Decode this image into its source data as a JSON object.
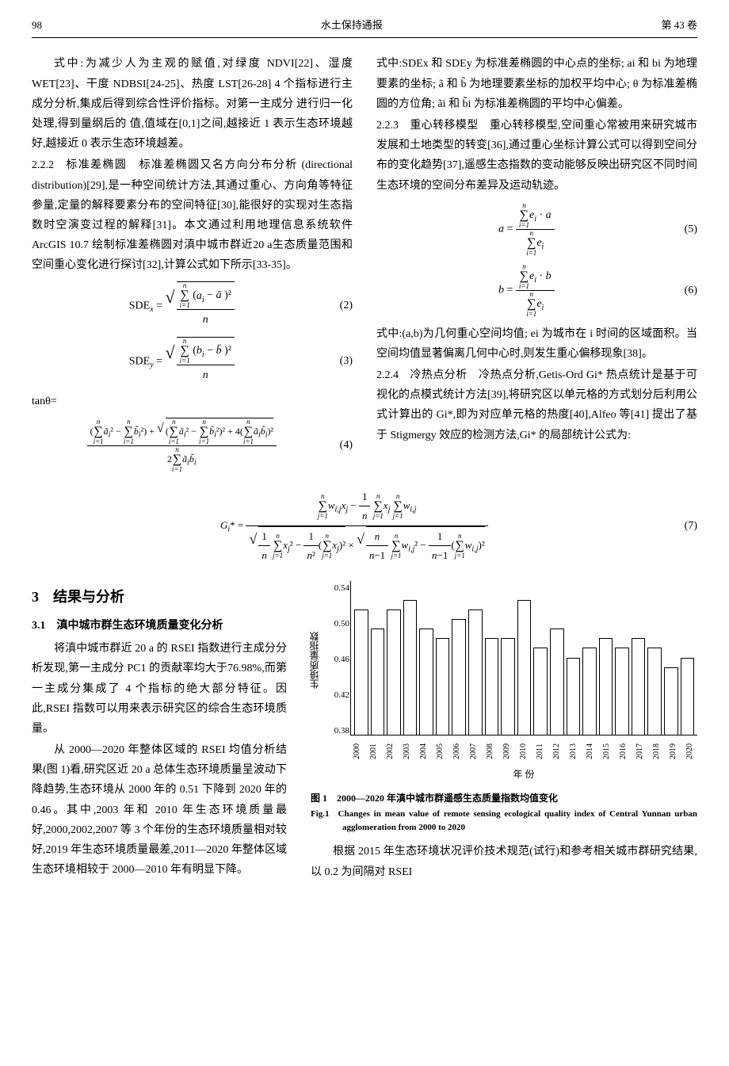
{
  "header": {
    "page_num": "98",
    "journal": "水土保持通报",
    "volume": "第 43 卷"
  },
  "col_left": {
    "p1": "式中:为减少人为主观的赋值,对绿度 NDVI[22]、湿度 WET[23]、干度 NDBSI[24-25]、热度 LST[26-28] 4 个指标进行主成分分析,集成后得到综合性评价指标。对第一主成分 进行归一化处理,得到量纲后的 值,值域在[0,1]之间,越接近 1 表示生态环境越好,越接近 0 表示生态环境越差。",
    "s222_title": "2.2.2 标准差椭圆",
    "s222_body": " 标准差椭圆又名方向分布分析 (directional distribution)[29],是一种空间统计方法,其通过重心、方向角等特征参量,定量的解释要素分布的空间特征[30],能很好的实现对生态指数时空演变过程的解释[31]。本文通过利用地理信息系统软件 ArcGIS 10.7 绘制标准差椭圆对滇中城市群近20 a生态质量范围和空间重心变化进行探讨[32],计算公式如下所示[33-35]。",
    "tantheta": "tanθ="
  },
  "col_right": {
    "p1": "式中:SDEx 和 SDEy 为标准差椭圆的中心点的坐标; ai 和 bi 为地理要素的坐标; ã 和 b̃ 为地理要素坐标的加权平均中心; θ 为标准差椭圆的方位角; ãi 和 b̃i 为标准差椭圆的平均中心偏差。",
    "s223_title": "2.2.3 重心转移模型",
    "s223_body": " 重心转移模型,空间重心常被用来研究城市发展和土地类型的转变[36],通过重心坐标计算公式可以得到空间分布的变化趋势[37],遥感生态指数的变动能够反映出研究区不同时间生态环境的空间分布差异及运动轨迹。",
    "p2": "式中:(a,b)为几何重心空间均值; ei 为城市在 i 时间的区域面积。当空间均值显著偏离几何中心时,则发生重心偏移现象[38]。",
    "s224_title": "2.2.4 冷热点分析",
    "s224_body": " 冷热点分析,Getis-Ord Gi* 热点统计是基于可视化的点模式统计方法[39],将研究区以单元格的方式划分后利用公式计算出的 Gi*,即为对应单元格的热度[40],Alfeo 等[41] 提出了基于 Stigmergy 效应的检测方法,Gi* 的局部统计公式为:"
  },
  "formulas": {
    "n2": "(2)",
    "n3": "(3)",
    "n4": "(4)",
    "n5": "(5)",
    "n6": "(6)",
    "n7": "(7)"
  },
  "results": {
    "h2": "3 结果与分析",
    "h3_1": "3.1 滇中城市群生态环境质量变化分析",
    "p1": "将滇中城市群近 20 a 的 RSEI 指数进行主成分分析发现,第一主成分 PC1 的贡献率均大于76.98%,而第一主成分集成了 4 个指标的绝大部分特征。因此,RSEI 指数可以用来表示研究区的综合生态环境质量。",
    "p2": "从 2000—2020 年整体区域的 RSEI 均值分析结果(图 1)看,研究区近 20 a 总体生态环境质量呈波动下降趋势,生态环境从 2000 年的 0.51 下降到 2020 年的 0.46。其中,2003 年和 2010 年生态环境质量最好,2000,2002,2007 等 3 个年份的生态环境质量相对较好,2019 年生态环境质量最差,2011—2020 年整体区域生态环境相较于 2000—2010 年有明显下降。",
    "p3": "根据 2015 年生态环境状况评价技术规范(试行)和参考相关城市群研究结果,以 0.2 为间隔对 RSEI"
  },
  "chart": {
    "y_label": "生境质量指数",
    "x_label": "年 份",
    "y_ticks": [
      "0.54",
      "0.50",
      "0.46",
      "0.42",
      "0.38"
    ],
    "years": [
      "2000",
      "2001",
      "2002",
      "2003",
      "2004",
      "2005",
      "2006",
      "2007",
      "2008",
      "2009",
      "2010",
      "2011",
      "2012",
      "2013",
      "2014",
      "2015",
      "2016",
      "2017",
      "2018",
      "2019",
      "2020"
    ],
    "values": [
      0.51,
      0.49,
      0.51,
      0.52,
      0.49,
      0.48,
      0.5,
      0.51,
      0.48,
      0.48,
      0.52,
      0.47,
      0.49,
      0.46,
      0.47,
      0.48,
      0.47,
      0.48,
      0.47,
      0.45,
      0.46
    ],
    "ymin": 0.38,
    "ymax": 0.54,
    "caption_zh": "图 1 2000—2020 年滇中城市群遥感生态质量指数均值变化",
    "caption_en": "Fig.1 Changes in mean value of remote sensing ecological quality index of Central Yunnan urban agglomeration from 2000 to 2020"
  }
}
